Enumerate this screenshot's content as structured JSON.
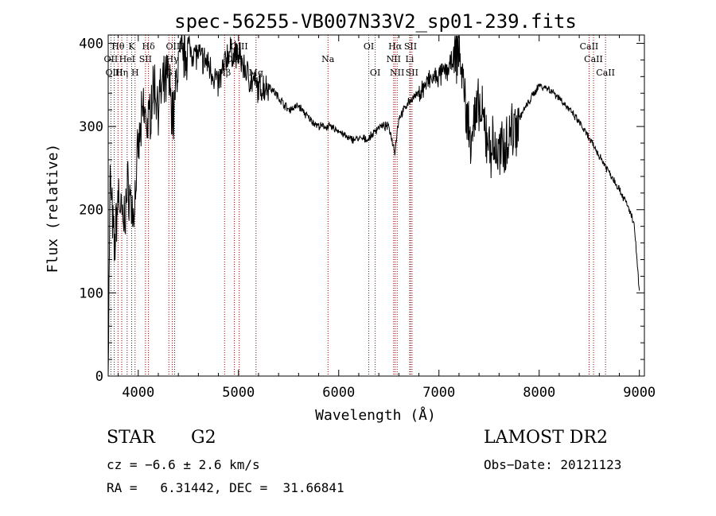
{
  "chart_data": {
    "type": "line",
    "title": "spec-56255-VB007N33V2_sp01-239.fits",
    "xlabel": "Wavelength (Å)",
    "ylabel": "Flux (relative)",
    "xlim": [
      3700,
      9050
    ],
    "ylim": [
      0,
      410
    ],
    "xticks": [
      4000,
      5000,
      6000,
      7000,
      8000,
      9000
    ],
    "xtick_labels": [
      "4000",
      "5000",
      "6000",
      "7000",
      "8000",
      "9000"
    ],
    "yticks": [
      0,
      100,
      200,
      300,
      400
    ],
    "ytick_labels": [
      "0",
      "100",
      "200",
      "300",
      "400"
    ],
    "grid": false,
    "line_color": "#000000",
    "marker_color": "#8b0000",
    "spectrum_anchors": [
      [
        3700,
        10
      ],
      [
        3720,
        240
      ],
      [
        3760,
        150
      ],
      [
        3800,
        220
      ],
      [
        3850,
        180
      ],
      [
        3900,
        230
      ],
      [
        3950,
        190
      ],
      [
        4000,
        270
      ],
      [
        4050,
        320
      ],
      [
        4100,
        300
      ],
      [
        4150,
        350
      ],
      [
        4200,
        330
      ],
      [
        4300,
        360
      ],
      [
        4350,
        310
      ],
      [
        4400,
        380
      ],
      [
        4500,
        395
      ],
      [
        4600,
        385
      ],
      [
        4700,
        375
      ],
      [
        4800,
        350
      ],
      [
        4900,
        390
      ],
      [
        5000,
        385
      ],
      [
        5100,
        360
      ],
      [
        5200,
        345
      ],
      [
        5300,
        350
      ],
      [
        5400,
        335
      ],
      [
        5500,
        320
      ],
      [
        5600,
        325
      ],
      [
        5700,
        310
      ],
      [
        5800,
        300
      ],
      [
        5900,
        300
      ],
      [
        6000,
        295
      ],
      [
        6100,
        285
      ],
      [
        6200,
        285
      ],
      [
        6300,
        285
      ],
      [
        6400,
        300
      ],
      [
        6500,
        300
      ],
      [
        6560,
        270
      ],
      [
        6600,
        310
      ],
      [
        6700,
        330
      ],
      [
        6800,
        340
      ],
      [
        6900,
        355
      ],
      [
        7000,
        360
      ],
      [
        7100,
        370
      ],
      [
        7200,
        395
      ],
      [
        7300,
        290
      ],
      [
        7400,
        320
      ],
      [
        7500,
        280
      ],
      [
        7600,
        265
      ],
      [
        7700,
        290
      ],
      [
        7800,
        310
      ],
      [
        7900,
        330
      ],
      [
        8000,
        350
      ],
      [
        8100,
        345
      ],
      [
        8200,
        335
      ],
      [
        8300,
        320
      ],
      [
        8400,
        305
      ],
      [
        8500,
        285
      ],
      [
        8600,
        265
      ],
      [
        8700,
        245
      ],
      [
        8800,
        225
      ],
      [
        8900,
        200
      ],
      [
        8950,
        180
      ],
      [
        9000,
        100
      ]
    ],
    "lines": [
      {
        "label": "Hθ",
        "x": 3798,
        "row": 0
      },
      {
        "label": "K",
        "x": 3934,
        "row": 0
      },
      {
        "label": "Hδ",
        "x": 4102,
        "row": 0
      },
      {
        "label": "OIII",
        "x": 4363,
        "row": 0
      },
      {
        "label": "OIII",
        "x": 5007,
        "row": 0
      },
      {
        "label": "OI",
        "x": 6300,
        "row": 0
      },
      {
        "label": "Hα",
        "x": 6563,
        "row": 0
      },
      {
        "label": "SII",
        "x": 6716,
        "row": 0
      },
      {
        "label": "CaII",
        "x": 8498,
        "row": 0
      },
      {
        "label": "OII",
        "x": 3727,
        "row": 1
      },
      {
        "label": "HeI",
        "x": 3889,
        "row": 1
      },
      {
        "label": "SII",
        "x": 4072,
        "row": 1
      },
      {
        "label": "Hγ",
        "x": 4340,
        "row": 1
      },
      {
        "label": "OIII",
        "x": 4959,
        "row": 1
      },
      {
        "label": "Na",
        "x": 5893,
        "row": 1
      },
      {
        "label": "NII",
        "x": 6548,
        "row": 1
      },
      {
        "label": "Li",
        "x": 6708,
        "row": 1
      },
      {
        "label": "CaII",
        "x": 8542,
        "row": 1
      },
      {
        "label": "OIII",
        "x": 3760,
        "row": 2
      },
      {
        "label": "Hη",
        "x": 3835,
        "row": 2
      },
      {
        "label": "H",
        "x": 3968,
        "row": 2
      },
      {
        "label": "G",
        "x": 4305,
        "row": 2
      },
      {
        "label": "Hβ",
        "x": 4861,
        "row": 2
      },
      {
        "label": "Mg",
        "x": 5175,
        "row": 2
      },
      {
        "label": "OI",
        "x": 6364,
        "row": 2
      },
      {
        "label": "NII",
        "x": 6583,
        "row": 2
      },
      {
        "label": "SII",
        "x": 6731,
        "row": 2
      },
      {
        "label": "CaII",
        "x": 8662,
        "row": 2
      }
    ]
  },
  "info": {
    "class": "STAR",
    "subclass": "G2",
    "survey": "LAMOST DR2",
    "cz": "cz = −6.6 ± 2.6 km/s",
    "obs_date": "Obs−Date: 20121123",
    "radec": "RA =   6.31442, DEC =  31.66841"
  }
}
